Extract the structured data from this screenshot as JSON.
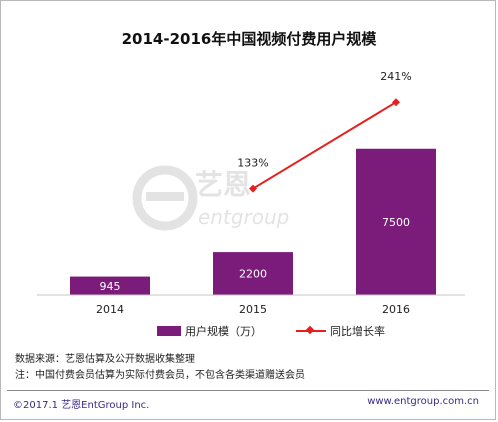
{
  "chart_data": {
    "type": "bar",
    "title": "2014-2016年中国视频付费用户规模",
    "categories": [
      "2014",
      "2015",
      "2016"
    ],
    "series": [
      {
        "name": "用户规模（万）",
        "type": "bar",
        "values": [
          945,
          2200,
          7500
        ],
        "data_labels": [
          "945",
          "2200",
          "7500"
        ]
      },
      {
        "name": "同比增长率",
        "type": "line",
        "values": [
          null,
          133,
          241
        ],
        "data_labels": [
          "",
          "133%",
          "241%"
        ]
      }
    ],
    "ylim": [
      0,
      10000
    ],
    "y2lim": [
      0,
      300
    ],
    "grid": false,
    "legend_position": "bottom"
  },
  "colors": {
    "bar": "#7b1c7a",
    "line": "#e61e1e",
    "footer_text": "#3a2a86"
  },
  "watermark": {
    "brand_cn": "艺恩",
    "brand_en": "entgroup"
  },
  "notes": {
    "source": "数据来源：艺恩估算及公开数据收集整理",
    "note": "注：中国付费会员估算为实际付费会员，不包含各类渠道赠送会员"
  },
  "footer": {
    "copyright": "©2017.1  艺恩EntGroup Inc.",
    "website": "www.entgroup.com.cn"
  }
}
